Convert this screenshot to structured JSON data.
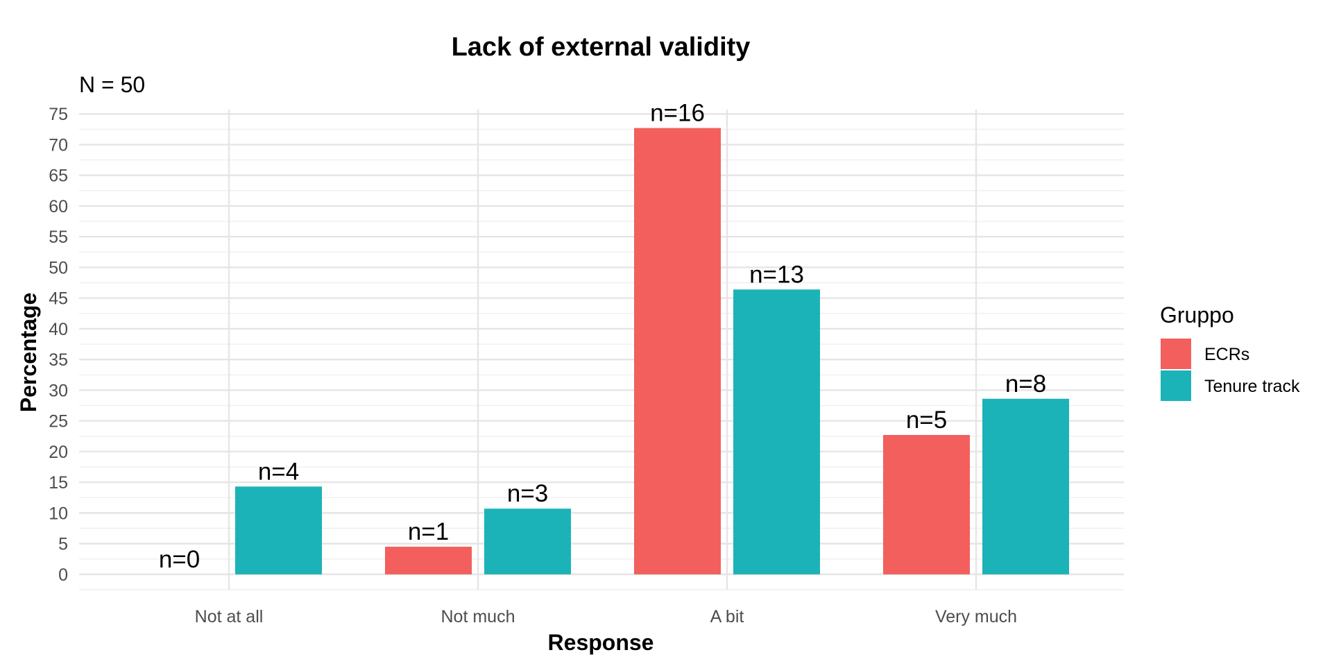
{
  "chart_data": {
    "type": "bar",
    "title": "Lack of external validity",
    "subtitle": "N = 50",
    "xlabel": "Response",
    "ylabel": "Percentage",
    "categories": [
      "Not at all",
      "Not much",
      "A bit",
      "Very much"
    ],
    "ylim": [
      -2.5,
      75.7
    ],
    "yticks": [
      0,
      5,
      10,
      15,
      20,
      25,
      30,
      35,
      40,
      45,
      50,
      55,
      60,
      65,
      70,
      75
    ],
    "grid": true,
    "legend": {
      "title": "Gruppo",
      "position": "right"
    },
    "series": [
      {
        "name": "ECRs",
        "color": "#F25F5C",
        "values": [
          0,
          4.5,
          72.7,
          22.7
        ],
        "labels": [
          "n=0",
          "n=1",
          "n=16",
          "n=5"
        ]
      },
      {
        "name": "Tenure track",
        "color": "#1BB3B7",
        "values": [
          14.3,
          10.7,
          46.4,
          28.6
        ],
        "labels": [
          "n=4",
          "n=3",
          "n=13",
          "n=8"
        ]
      }
    ]
  }
}
